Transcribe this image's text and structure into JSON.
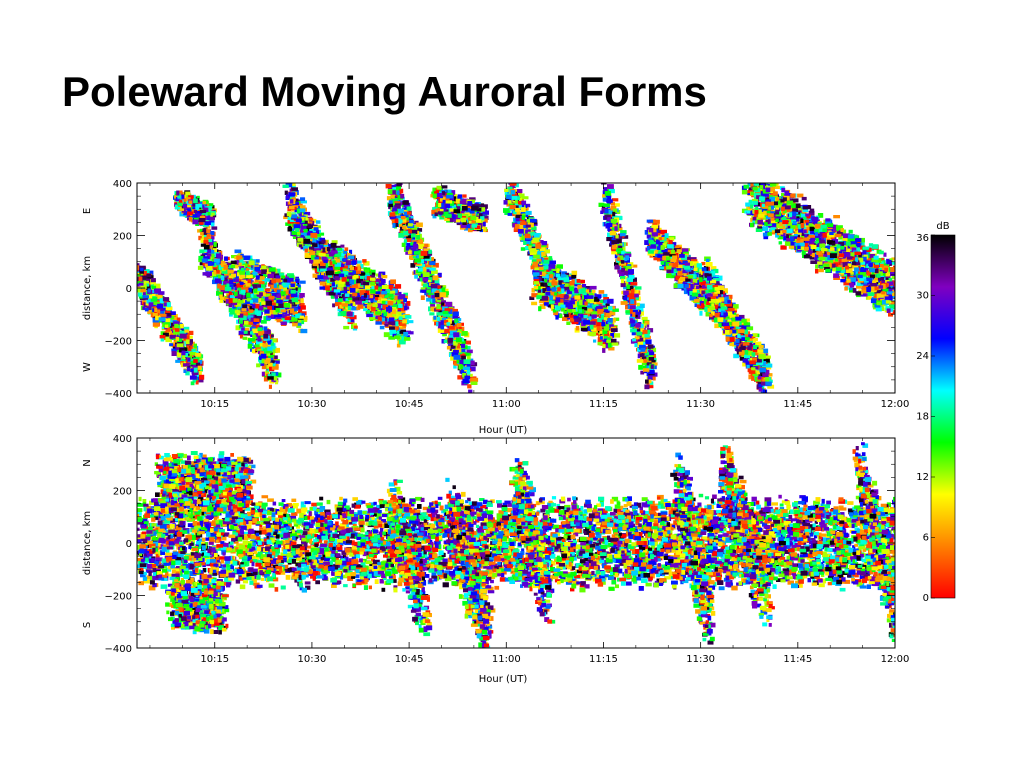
{
  "slide": {
    "title": "Poleward Moving Auroral Forms"
  },
  "chart_data": [
    {
      "type": "scatter",
      "panel": "top",
      "x_tick_labels": [
        "10:15",
        "10:30",
        "10:45",
        "11:00",
        "11:15",
        "11:30",
        "11:45",
        "12:00"
      ],
      "x_ticks_minutes": [
        615,
        630,
        645,
        660,
        675,
        690,
        705,
        720
      ],
      "xlim_minutes": [
        603,
        720
      ],
      "xlabel": "Hour (UT)",
      "ylabel": "distance, km",
      "y_top_direction": "E",
      "y_bottom_direction": "W",
      "ylim": [
        -400,
        400
      ],
      "y_ticks": [
        400,
        200,
        0,
        -200,
        -400
      ],
      "y_tick_labels": [
        "400",
        "200",
        "0",
        "−200",
        "−400"
      ],
      "color_variable": "dB",
      "bands": [
        {
          "t_start": 603,
          "t_end": 612,
          "y_start": 40,
          "y_end": -310,
          "width": 110
        },
        {
          "t_start": 609,
          "t_end": 614,
          "y_start": 330,
          "y_end": 270,
          "width": 70
        },
        {
          "t_start": 613,
          "t_end": 624,
          "y_start": 170,
          "y_end": -300,
          "width": 130
        },
        {
          "t_start": 618,
          "t_end": 628,
          "y_start": 40,
          "y_end": -70,
          "width": 160
        },
        {
          "t_start": 626,
          "t_end": 636,
          "y_start": 320,
          "y_end": -80,
          "width": 140
        },
        {
          "t_start": 633,
          "t_end": 644,
          "y_start": 90,
          "y_end": -120,
          "width": 150
        },
        {
          "t_start": 642,
          "t_end": 654,
          "y_start": 360,
          "y_end": -320,
          "width": 130
        },
        {
          "t_start": 649,
          "t_end": 656,
          "y_start": 330,
          "y_end": 260,
          "width": 90
        },
        {
          "t_start": 660,
          "t_end": 668,
          "y_start": 380,
          "y_end": -60,
          "width": 110
        },
        {
          "t_start": 664,
          "t_end": 676,
          "y_start": 50,
          "y_end": -150,
          "width": 150
        },
        {
          "t_start": 675,
          "t_end": 682,
          "y_start": 350,
          "y_end": -330,
          "width": 110
        },
        {
          "t_start": 682,
          "t_end": 694,
          "y_start": 190,
          "y_end": -110,
          "width": 120
        },
        {
          "t_start": 690,
          "t_end": 700,
          "y_start": 40,
          "y_end": -350,
          "width": 120
        },
        {
          "t_start": 697,
          "t_end": 720,
          "y_start": 360,
          "y_end": -10,
          "width": 170
        }
      ]
    },
    {
      "type": "scatter",
      "panel": "bottom",
      "x_tick_labels": [
        "10:15",
        "10:30",
        "10:45",
        "11:00",
        "11:15",
        "11:30",
        "11:45",
        "12:00"
      ],
      "x_ticks_minutes": [
        615,
        630,
        645,
        660,
        675,
        690,
        705,
        720
      ],
      "xlim_minutes": [
        603,
        720
      ],
      "xlabel": "Hour (UT)",
      "ylabel": "distance, km",
      "y_top_direction": "N",
      "y_bottom_direction": "S",
      "ylim": [
        -400,
        400
      ],
      "y_ticks": [
        400,
        200,
        0,
        -200,
        -400
      ],
      "y_tick_labels": [
        "400",
        "200",
        "0",
        "−200",
        "−400"
      ],
      "color_variable": "dB",
      "bands": [
        {
          "t_start": 603,
          "t_end": 720,
          "y_start": 0,
          "y_end": 0,
          "width": 260
        },
        {
          "t_start": 606,
          "t_end": 620,
          "y_start": 220,
          "y_end": 220,
          "width": 180
        },
        {
          "t_start": 608,
          "t_end": 616,
          "y_start": -240,
          "y_end": -240,
          "width": 150
        },
        {
          "t_start": 642,
          "t_end": 647,
          "y_start": 150,
          "y_end": -250,
          "width": 200
        },
        {
          "t_start": 651,
          "t_end": 657,
          "y_start": 100,
          "y_end": -300,
          "width": 260
        },
        {
          "t_start": 661,
          "t_end": 666,
          "y_start": 250,
          "y_end": -200,
          "width": 200
        },
        {
          "t_start": 686,
          "t_end": 691,
          "y_start": 250,
          "y_end": -300,
          "width": 200
        },
        {
          "t_start": 693,
          "t_end": 700,
          "y_start": 280,
          "y_end": -200,
          "width": 220
        },
        {
          "t_start": 714,
          "t_end": 720,
          "y_start": 300,
          "y_end": -300,
          "width": 160
        }
      ]
    }
  ],
  "colorbar": {
    "label": "dB",
    "min": 0,
    "max": 36,
    "ticks": [
      36,
      30,
      24,
      18,
      12,
      6,
      0
    ],
    "colors_low_to_high": [
      "#ff0000",
      "#ff8000",
      "#ffff00",
      "#00ff00",
      "#00ffff",
      "#0000ff",
      "#8000c0",
      "#000000"
    ]
  }
}
